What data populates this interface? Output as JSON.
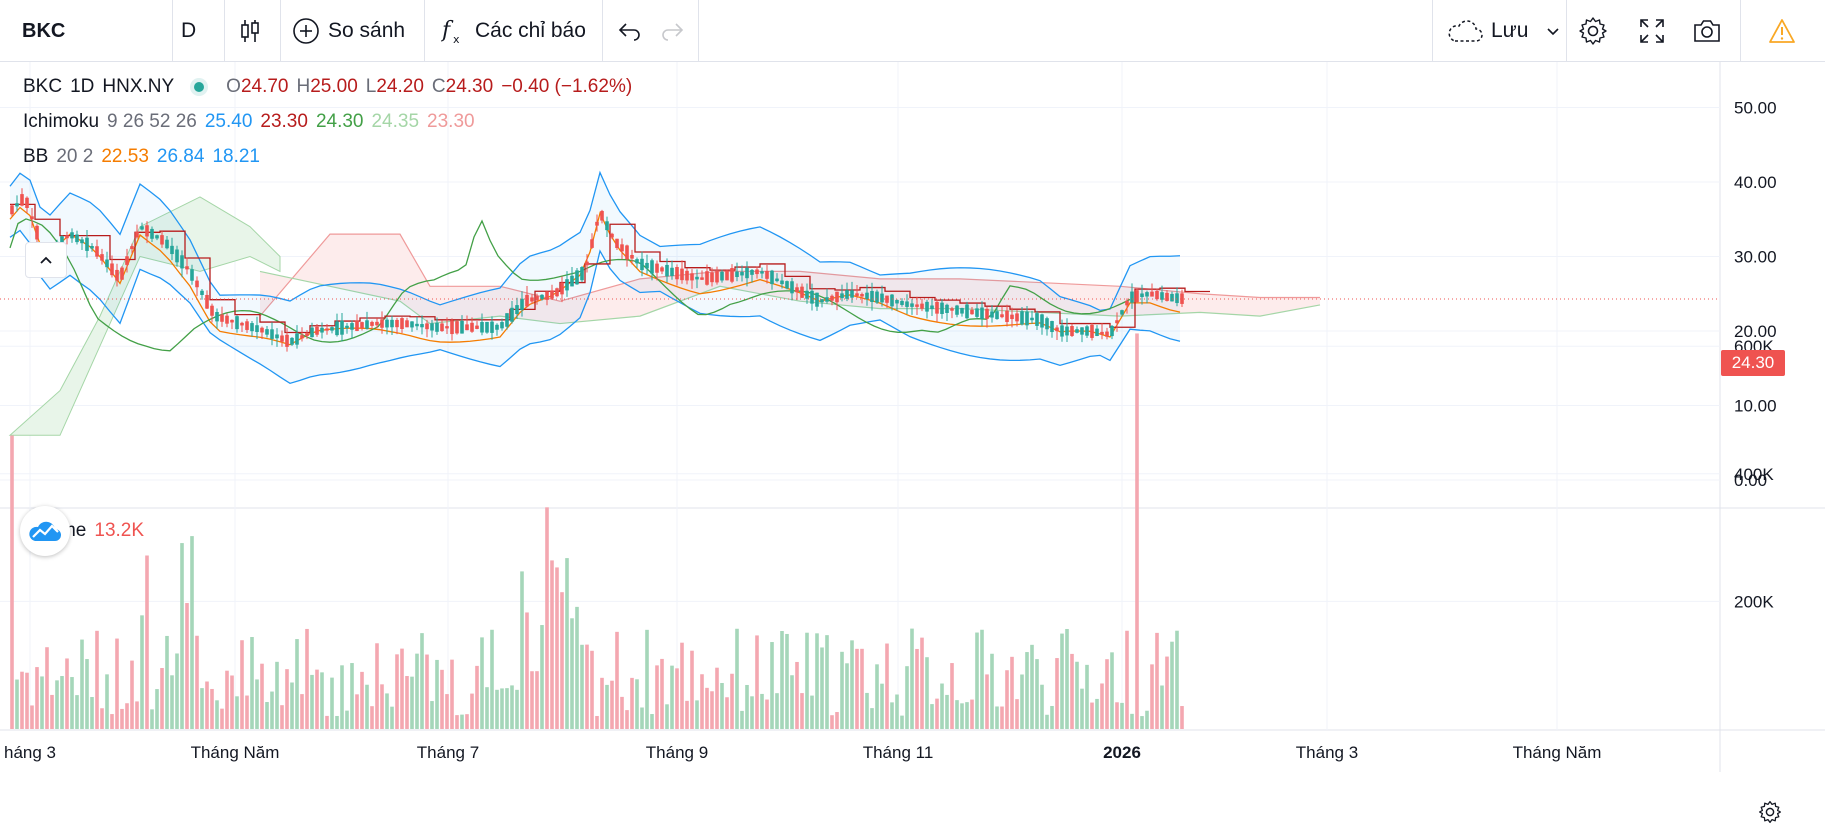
{
  "toolbar": {
    "symbol": "BKC",
    "interval": "D",
    "compare_label": "So sánh",
    "indicators_label": "Các chỉ báo",
    "save_label": "Lưu"
  },
  "legend": {
    "symbol": "BKC",
    "interval": "1D",
    "exchange": "HNX.NY",
    "o_label": "O",
    "o": "24.70",
    "h_label": "H",
    "h": "25.00",
    "l_label": "L",
    "l": "24.20",
    "c_label": "C",
    "c": "24.30",
    "change": "−0.40 (−1.62%)"
  },
  "ichimoku": {
    "name": "Ichimoku",
    "params": "9 26 52 26",
    "v1": "25.40",
    "v2": "23.30",
    "v3": "24.30",
    "v4": "24.35",
    "v5": "23.30"
  },
  "bb": {
    "name": "BB",
    "params": "20 2",
    "v1": "22.53",
    "v2": "26.84",
    "v3": "18.21"
  },
  "volume": {
    "name": "Volume",
    "value": "13.2K"
  },
  "price_axis": [
    "50.00",
    "40.00",
    "30.00",
    "20.00",
    "10.00",
    "0.00"
  ],
  "volume_axis": [
    "600K",
    "400K",
    "200K"
  ],
  "last_price": "24.30",
  "time_axis": [
    "háng 3",
    "Tháng Năm",
    "Tháng 7",
    "Tháng 9",
    "Tháng 11",
    "2026",
    "Tháng 3",
    "Tháng Năm"
  ],
  "colors": {
    "up": "#26a69a",
    "down": "#ef5350",
    "bb_mid": "#f57c00",
    "bb_band": "#2196f3",
    "tenkan": "#2196f3",
    "kijun": "#b71c1c",
    "chikou": "#43a047",
    "span_a": "#a5d6a7",
    "span_b": "#ef9a9a",
    "vol_up": "#a5d6b9",
    "vol_down": "#f4a7b0"
  }
}
